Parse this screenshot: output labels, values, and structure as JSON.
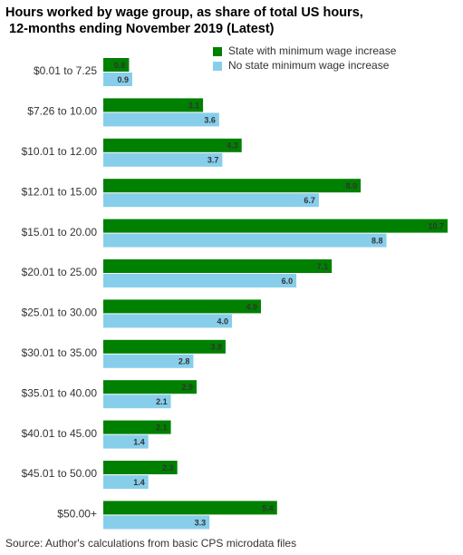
{
  "chart_data": {
    "type": "hbar",
    "title": "Hours worked by wage group, as share of total US hours,\n 12-months ending November 2019 (Latest)",
    "source": "Source: Author's calculations from basic CPS microdata files",
    "categories": [
      "$0.01 to 7.25",
      "$7.26 to 10.00",
      "$10.01 to 12.00",
      "$12.01 to 15.00",
      "$15.01 to 20.00",
      "$20.01 to 25.00",
      "$25.01 to 30.00",
      "$30.01 to 35.00",
      "$35.01 to 40.00",
      "$40.01 to 45.00",
      "$45.01 to 50.00",
      "$50.00+"
    ],
    "series": [
      {
        "name": "State with minimum wage increase",
        "color": "#008000",
        "values": [
          0.8,
          3.1,
          4.3,
          8.0,
          10.7,
          7.1,
          4.9,
          3.8,
          2.9,
          2.1,
          2.3,
          5.4
        ],
        "value_labels": [
          "0.8",
          "3.1",
          "4.3",
          "8.0",
          "10.7",
          "7.1",
          "4.9",
          "3.8",
          "2.9",
          "2.1",
          "2.3",
          "5.4"
        ]
      },
      {
        "name": "No state minimum wage increase",
        "color": "#87ceeb",
        "values": [
          0.9,
          3.6,
          3.7,
          6.7,
          8.8,
          6.0,
          4.0,
          2.8,
          2.1,
          1.4,
          1.4,
          3.3
        ],
        "value_labels": [
          "0.9",
          "3.6",
          "3.7",
          "6.7",
          "8.8",
          "6.0",
          "4.0",
          "2.8",
          "2.1",
          "1.4",
          "1.4",
          "3.3"
        ]
      }
    ]
  }
}
